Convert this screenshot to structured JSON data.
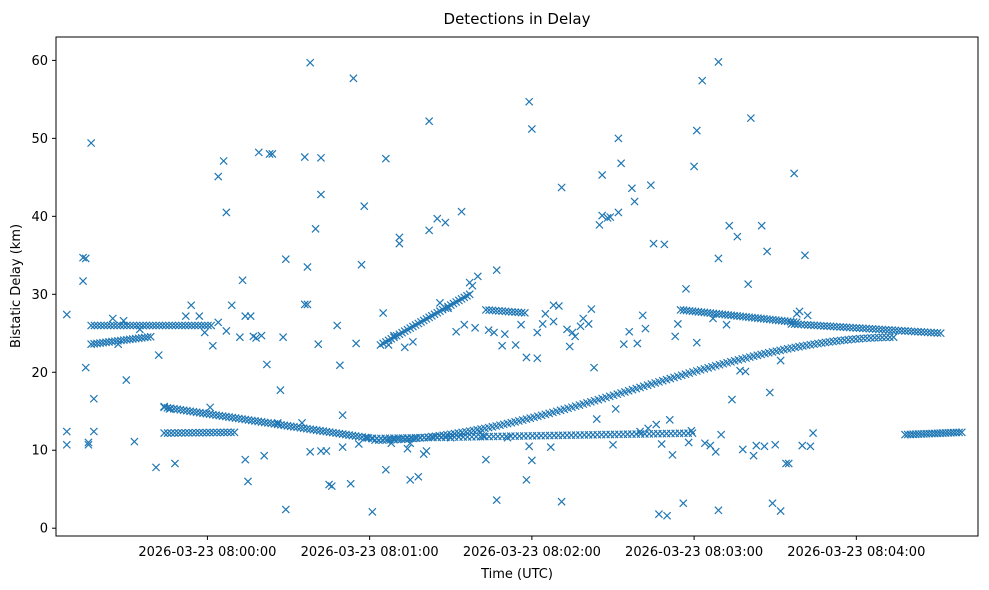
{
  "chart_data": {
    "type": "scatter",
    "title": "Detections in Delay",
    "xlabel": "Time (UTC)",
    "ylabel": "Bistatic Delay (km)",
    "marker": "x",
    "color": "#1f77b4",
    "grid": false,
    "x_unit": "seconds after 2026-03-23 07:59:00",
    "xlim": [
      4,
      345
    ],
    "ylim": [
      -1,
      63
    ],
    "x_ticks": [
      {
        "value": 60,
        "label": "2026-03-23 08:00:00"
      },
      {
        "value": 120,
        "label": "2026-03-23 08:01:00"
      },
      {
        "value": 180,
        "label": "2026-03-23 08:02:00"
      },
      {
        "value": 240,
        "label": "2026-03-23 08:03:00"
      },
      {
        "value": 300,
        "label": "2026-03-23 08:04:00"
      }
    ],
    "y_ticks": [
      0,
      10,
      20,
      30,
      40,
      50,
      60
    ],
    "tracks": [
      {
        "name": "track-rising-low",
        "x_start": 122,
        "x_end": 315,
        "step": 1.4,
        "y_start": 11.3,
        "y_end": 24.5,
        "shape": "smooth"
      },
      {
        "name": "track-rising-high",
        "x_start": 124,
        "x_end": 157,
        "step": 1.0,
        "y_start": 23.5,
        "y_end": 30.0,
        "shape": "linear"
      },
      {
        "name": "track-descending-left",
        "x_start": 44,
        "x_end": 121,
        "step": 1.2,
        "y_start": 15.5,
        "y_end": 11.5,
        "shape": "linear"
      },
      {
        "name": "track-flat-low",
        "x_start": 121,
        "x_end": 240,
        "step": 1.6,
        "y_start": 11.5,
        "y_end": 12.2,
        "shape": "linear"
      },
      {
        "name": "track-flat-high-left",
        "x_start": 17,
        "x_end": 62,
        "step": 1.2,
        "y_start": 26.0,
        "y_end": 26.0,
        "shape": "linear"
      },
      {
        "name": "track-left-lower-band",
        "x_start": 17,
        "x_end": 40,
        "step": 1.1,
        "y_start": 23.6,
        "y_end": 24.6,
        "shape": "linear"
      },
      {
        "name": "track-left-low-band",
        "x_start": 44,
        "x_end": 70,
        "step": 1.3,
        "y_start": 12.2,
        "y_end": 12.3,
        "shape": "linear"
      },
      {
        "name": "track-mid-flat",
        "x_start": 163,
        "x_end": 178,
        "step": 1.2,
        "y_start": 28.0,
        "y_end": 27.6,
        "shape": "linear"
      },
      {
        "name": "track-right-upper",
        "x_start": 235,
        "x_end": 278,
        "step": 1.1,
        "y_start": 28.0,
        "y_end": 26.4,
        "shape": "linear"
      },
      {
        "name": "track-right-upper-2",
        "x_start": 276,
        "x_end": 332,
        "step": 1.2,
        "y_start": 26.2,
        "y_end": 25.0,
        "shape": "linear"
      },
      {
        "name": "track-right-low",
        "x_start": 318,
        "x_end": 339,
        "step": 1.0,
        "y_start": 12.0,
        "y_end": 12.3,
        "shape": "linear"
      }
    ],
    "points": [
      [
        8,
        27.4
      ],
      [
        8,
        12.4
      ],
      [
        8,
        10.7
      ],
      [
        14,
        34.7
      ],
      [
        15,
        34.6
      ],
      [
        14,
        31.7
      ],
      [
        15,
        20.6
      ],
      [
        16,
        11
      ],
      [
        16,
        10.7
      ],
      [
        17,
        49.4
      ],
      [
        18,
        16.6
      ],
      [
        18,
        12.4
      ],
      [
        25,
        26.9
      ],
      [
        27,
        23.6
      ],
      [
        29,
        26.6
      ],
      [
        30,
        19
      ],
      [
        33,
        11.1
      ],
      [
        35,
        25.5
      ],
      [
        41,
        7.8
      ],
      [
        42,
        22.2
      ],
      [
        44,
        15.6
      ],
      [
        46,
        15.3
      ],
      [
        48,
        8.3
      ],
      [
        52,
        27.2
      ],
      [
        54,
        28.6
      ],
      [
        57,
        27.2
      ],
      [
        59,
        25.1
      ],
      [
        61,
        15.5
      ],
      [
        62,
        23.4
      ],
      [
        64,
        26.4
      ],
      [
        64,
        45.1
      ],
      [
        66,
        47.1
      ],
      [
        67,
        40.5
      ],
      [
        67,
        25.3
      ],
      [
        69,
        28.6
      ],
      [
        72,
        24.5
      ],
      [
        73,
        31.8
      ],
      [
        74,
        8.8
      ],
      [
        75,
        6
      ],
      [
        74,
        27.2
      ],
      [
        76,
        27.2
      ],
      [
        77,
        24.6
      ],
      [
        78,
        24.4
      ],
      [
        79,
        48.2
      ],
      [
        80,
        24.7
      ],
      [
        81,
        9.3
      ],
      [
        82,
        21
      ],
      [
        83,
        48
      ],
      [
        84,
        48
      ],
      [
        86,
        13.5
      ],
      [
        87,
        17.7
      ],
      [
        88,
        24.5
      ],
      [
        89,
        34.5
      ],
      [
        89,
        2.4
      ],
      [
        95,
        13.5
      ],
      [
        96,
        28.7
      ],
      [
        97,
        28.7
      ],
      [
        96,
        47.6
      ],
      [
        97,
        33.5
      ],
      [
        98,
        59.7
      ],
      [
        98,
        9.8
      ],
      [
        100,
        38.4
      ],
      [
        102,
        47.5
      ],
      [
        102,
        42.8
      ],
      [
        101,
        23.6
      ],
      [
        102,
        9.9
      ],
      [
        104,
        9.9
      ],
      [
        105,
        5.6
      ],
      [
        106,
        5.4
      ],
      [
        108,
        26
      ],
      [
        109,
        20.9
      ],
      [
        110,
        14.5
      ],
      [
        110,
        10.4
      ],
      [
        113,
        5.7
      ],
      [
        114,
        57.7
      ],
      [
        115,
        23.7
      ],
      [
        116,
        10.8
      ],
      [
        117,
        33.8
      ],
      [
        118,
        41.3
      ],
      [
        119,
        11.6
      ],
      [
        121,
        2.1
      ],
      [
        125,
        27.6
      ],
      [
        126,
        47.4
      ],
      [
        126,
        7.5
      ],
      [
        127,
        23.5
      ],
      [
        128,
        10.9
      ],
      [
        129,
        24.7
      ],
      [
        131,
        37.3
      ],
      [
        131,
        36.5
      ],
      [
        133,
        23.2
      ],
      [
        134,
        10.2
      ],
      [
        135,
        10.9
      ],
      [
        135,
        6.2
      ],
      [
        136,
        23.9
      ],
      [
        138,
        6.6
      ],
      [
        140,
        9.5
      ],
      [
        141,
        9.9
      ],
      [
        142,
        52.2
      ],
      [
        142,
        38.2
      ],
      [
        145,
        39.7
      ],
      [
        146,
        28.9
      ],
      [
        148,
        39.2
      ],
      [
        149,
        28.2
      ],
      [
        150,
        11.6
      ],
      [
        152,
        25.2
      ],
      [
        154,
        40.6
      ],
      [
        155,
        26.1
      ],
      [
        157,
        31.5
      ],
      [
        158,
        31.1
      ],
      [
        159,
        25.7
      ],
      [
        160,
        32.3
      ],
      [
        161,
        12.3
      ],
      [
        162,
        11.8
      ],
      [
        163,
        8.8
      ],
      [
        164,
        25.4
      ],
      [
        166,
        25.1
      ],
      [
        167,
        33.1
      ],
      [
        167,
        3.6
      ],
      [
        169,
        23.4
      ],
      [
        170,
        24.9
      ],
      [
        171,
        11.6
      ],
      [
        174,
        23.5
      ],
      [
        176,
        26.1
      ],
      [
        178,
        6.2
      ],
      [
        178,
        21.9
      ],
      [
        179,
        10.5
      ],
      [
        179,
        54.7
      ],
      [
        180,
        51.2
      ],
      [
        180,
        8.7
      ],
      [
        182,
        21.8
      ],
      [
        182,
        25.1
      ],
      [
        184,
        26.2
      ],
      [
        185,
        27.5
      ],
      [
        187,
        10.4
      ],
      [
        188,
        26.5
      ],
      [
        188,
        28.6
      ],
      [
        190,
        28.5
      ],
      [
        191,
        3.4
      ],
      [
        191,
        43.7
      ],
      [
        193,
        25.5
      ],
      [
        194,
        23.3
      ],
      [
        195,
        25.1
      ],
      [
        196,
        24.6
      ],
      [
        198,
        25.9
      ],
      [
        199,
        26.9
      ],
      [
        201,
        26.2
      ],
      [
        202,
        28.1
      ],
      [
        203,
        20.6
      ],
      [
        204,
        14
      ],
      [
        205,
        38.9
      ],
      [
        206,
        40.1
      ],
      [
        206,
        45.3
      ],
      [
        208,
        39.8
      ],
      [
        209,
        39.9
      ],
      [
        210,
        10.7
      ],
      [
        211,
        15.3
      ],
      [
        212,
        40.5
      ],
      [
        212,
        50
      ],
      [
        213,
        46.8
      ],
      [
        214,
        23.6
      ],
      [
        216,
        25.2
      ],
      [
        217,
        43.6
      ],
      [
        218,
        41.9
      ],
      [
        219,
        23.7
      ],
      [
        220,
        12.4
      ],
      [
        221,
        27.3
      ],
      [
        222,
        25.6
      ],
      [
        223,
        12.8
      ],
      [
        224,
        44
      ],
      [
        225,
        36.5
      ],
      [
        226,
        13.3
      ],
      [
        227,
        1.8
      ],
      [
        228,
        10.8
      ],
      [
        229,
        36.4
      ],
      [
        230,
        1.6
      ],
      [
        231,
        13.9
      ],
      [
        232,
        9.4
      ],
      [
        233,
        24.6
      ],
      [
        234,
        26.2
      ],
      [
        236,
        3.2
      ],
      [
        237,
        30.7
      ],
      [
        238,
        11
      ],
      [
        239,
        12.5
      ],
      [
        240,
        46.4
      ],
      [
        241,
        51
      ],
      [
        241,
        23.8
      ],
      [
        243,
        57.4
      ],
      [
        244,
        10.9
      ],
      [
        246,
        10.6
      ],
      [
        247,
        26.9
      ],
      [
        248,
        9.8
      ],
      [
        249,
        59.8
      ],
      [
        249,
        34.6
      ],
      [
        249,
        2.3
      ],
      [
        250,
        12
      ],
      [
        252,
        26.1
      ],
      [
        253,
        38.8
      ],
      [
        254,
        16.5
      ],
      [
        256,
        37.4
      ],
      [
        257,
        20.2
      ],
      [
        258,
        10.1
      ],
      [
        259,
        20.1
      ],
      [
        260,
        31.3
      ],
      [
        261,
        52.6
      ],
      [
        262,
        9.3
      ],
      [
        263,
        10.6
      ],
      [
        265,
        38.8
      ],
      [
        266,
        10.5
      ],
      [
        267,
        35.5
      ],
      [
        268,
        17.4
      ],
      [
        269,
        3.2
      ],
      [
        270,
        10.7
      ],
      [
        272,
        21.5
      ],
      [
        272,
        2.2
      ],
      [
        274,
        8.3
      ],
      [
        275,
        8.3
      ],
      [
        277,
        45.5
      ],
      [
        278,
        27.5
      ],
      [
        279,
        27.8
      ],
      [
        280,
        10.6
      ],
      [
        281,
        35
      ],
      [
        282,
        27.3
      ],
      [
        283,
        10.5
      ],
      [
        284,
        12.2
      ]
    ]
  }
}
